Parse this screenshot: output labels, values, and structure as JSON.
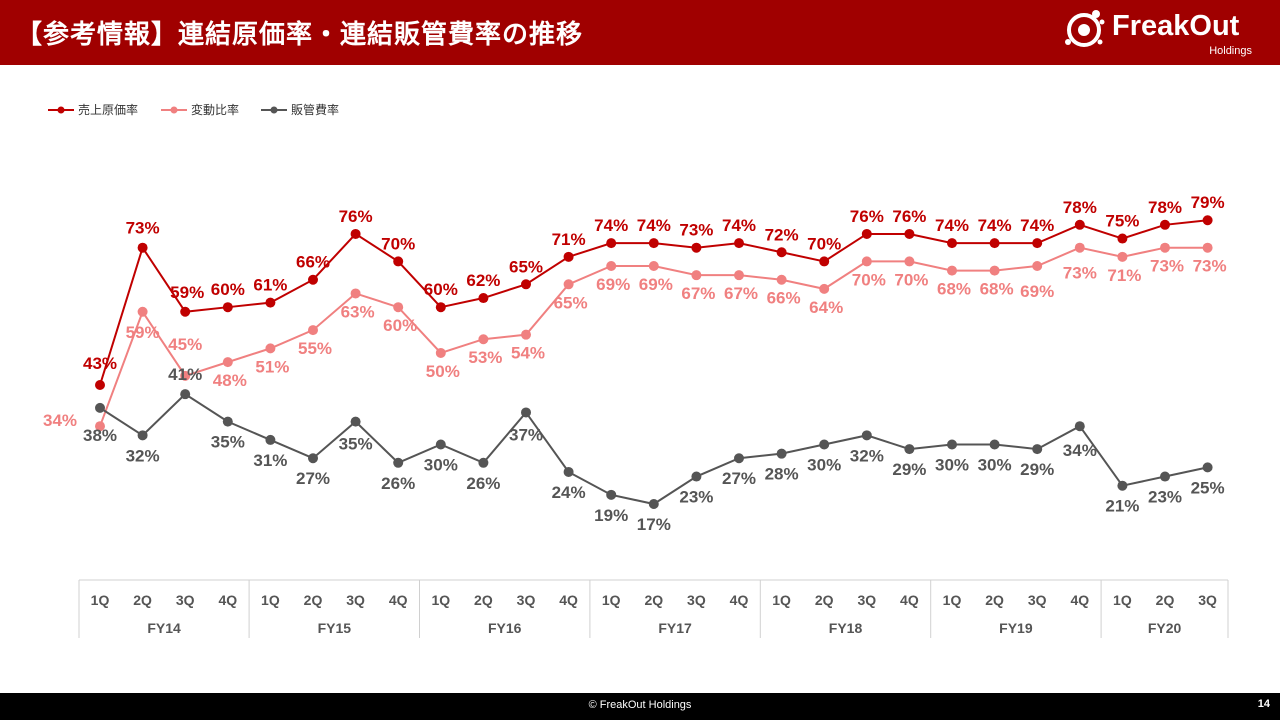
{
  "header": {
    "title": "【参考情報】連結原価率・連結販管費率の推移",
    "logo_text": "FreakOut",
    "logo_sub": "Holdings"
  },
  "footer": {
    "copyright": "© FreakOut Holdings",
    "page": "14"
  },
  "colors": {
    "header_bg": "#a00000",
    "cost_rate": "#c00000",
    "variable_rate": "#f08080",
    "sga_rate": "#555555"
  },
  "chart_data": {
    "type": "line",
    "legend_position": "top-left",
    "categories": [
      "1Q",
      "2Q",
      "3Q",
      "4Q",
      "1Q",
      "2Q",
      "3Q",
      "4Q",
      "1Q",
      "2Q",
      "3Q",
      "4Q",
      "1Q",
      "2Q",
      "3Q",
      "4Q",
      "1Q",
      "2Q",
      "3Q",
      "4Q",
      "1Q",
      "2Q",
      "3Q",
      "4Q",
      "1Q",
      "2Q",
      "3Q"
    ],
    "fiscal_groups": [
      {
        "label": "FY14",
        "count": 4
      },
      {
        "label": "FY15",
        "count": 4
      },
      {
        "label": "FY16",
        "count": 4
      },
      {
        "label": "FY17",
        "count": 4
      },
      {
        "label": "FY18",
        "count": 4
      },
      {
        "label": "FY19",
        "count": 4
      },
      {
        "label": "FY20",
        "count": 3
      }
    ],
    "series": [
      {
        "name": "売上原価率",
        "values": [
          43,
          73,
          59,
          60,
          61,
          66,
          76,
          70,
          60,
          62,
          65,
          71,
          74,
          74,
          73,
          74,
          72,
          70,
          76,
          76,
          74,
          74,
          74,
          78,
          75,
          78,
          79
        ]
      },
      {
        "name": "変動比率",
        "values": [
          34,
          59,
          45,
          48,
          51,
          55,
          63,
          60,
          50,
          53,
          54,
          65,
          69,
          69,
          67,
          67,
          66,
          64,
          70,
          70,
          68,
          68,
          69,
          73,
          71,
          73,
          73
        ]
      },
      {
        "name": "販管費率",
        "values": [
          38,
          32,
          41,
          35,
          31,
          27,
          35,
          26,
          30,
          26,
          37,
          24,
          19,
          17,
          23,
          27,
          28,
          30,
          32,
          29,
          30,
          30,
          29,
          34,
          21,
          23,
          25
        ]
      }
    ]
  }
}
